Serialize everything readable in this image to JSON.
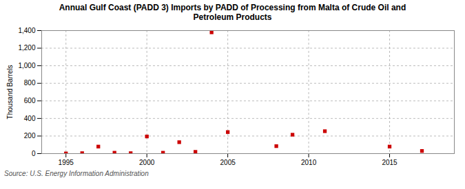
{
  "chart_data": {
    "type": "scatter",
    "title": "Annual Gulf Coast (PADD 3) Imports by PADD of Processing from Malta of Crude Oil and\nPetroleum Products",
    "ylabel": "Thousand Barrels",
    "source": "Source: U.S. Energy Information Administration",
    "x": [
      1995,
      1996,
      1997,
      1998,
      1999,
      2000,
      2001,
      2002,
      2003,
      2004,
      2005,
      2008,
      2009,
      2011,
      2015,
      2017
    ],
    "values": [
      2,
      5,
      80,
      10,
      5,
      195,
      10,
      130,
      20,
      1380,
      245,
      85,
      215,
      255,
      80,
      30
    ],
    "color": "#cc0000",
    "marker": "square",
    "xlim": [
      1993.5,
      2019
    ],
    "xticks": [
      1995,
      2000,
      2005,
      2010,
      2015
    ],
    "ylim": [
      0,
      1400
    ],
    "yticks": [
      0,
      200,
      400,
      600,
      800,
      {
        "value": 1000,
        "label": "1,000"
      },
      {
        "value": 1200,
        "label": "1,200"
      },
      {
        "value": 1400,
        "label": "1,400"
      }
    ],
    "grid": true
  }
}
